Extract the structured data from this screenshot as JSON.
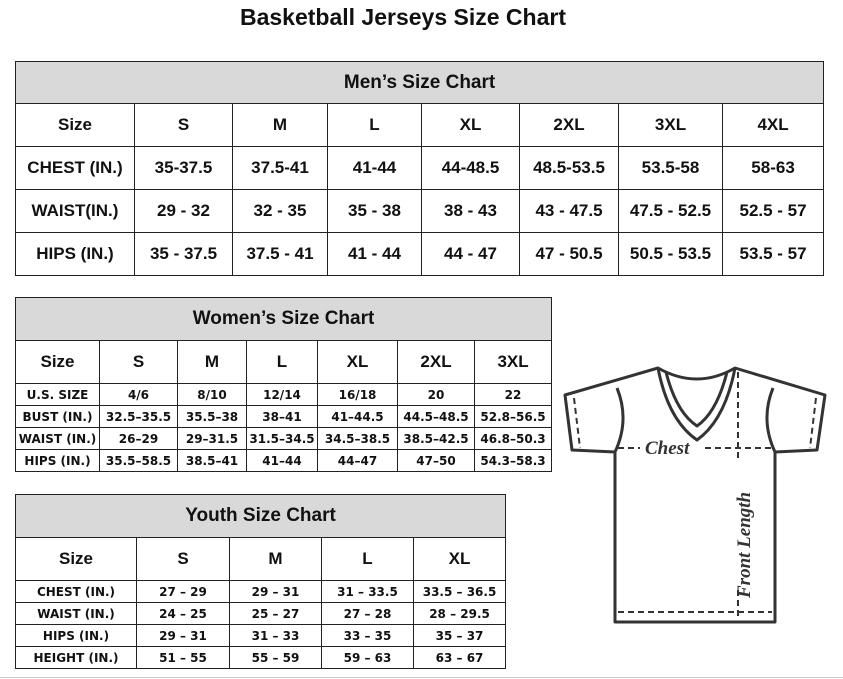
{
  "title": "Basketball Jerseys Size Chart",
  "men": {
    "caption": "Men’s Size Chart",
    "header": [
      "Size",
      "S",
      "M",
      "L",
      "XL",
      "2XL",
      "3XL",
      "4XL"
    ],
    "rows": [
      [
        "CHEST (IN.)",
        "35-37.5",
        "37.5-41",
        "41-44",
        "44-48.5",
        "48.5-53.5",
        "53.5-58",
        "58-63"
      ],
      [
        "WAIST(IN.)",
        "29 - 32",
        "32 - 35",
        "35 - 38",
        "38 - 43",
        "43 - 47.5",
        "47.5 - 52.5",
        "52.5 - 57"
      ],
      [
        "HIPS (IN.)",
        "35 - 37.5",
        "37.5 - 41",
        "41 - 44",
        "44 - 47",
        "47 - 50.5",
        "50.5 - 53.5",
        "53.5 - 57"
      ]
    ]
  },
  "women": {
    "caption": "Women’s Size Chart",
    "header": [
      "Size",
      "S",
      "M",
      "L",
      "XL",
      "2XL",
      "3XL"
    ],
    "rows": [
      [
        "U.S. SIZE",
        "4/6",
        "8/10",
        "12/14",
        "16/18",
        "20",
        "22"
      ],
      [
        "BUST (IN.)",
        "32.5–35.5",
        "35.5–38",
        "38–41",
        "41–44.5",
        "44.5–48.5",
        "52.8–56.5"
      ],
      [
        "WAIST (IN.)",
        "26–29",
        "29–31.5",
        "31.5–34.5",
        "34.5–38.5",
        "38.5–42.5",
        "46.8–50.3"
      ],
      [
        "HIPS (IN.)",
        "35.5–58.5",
        "38.5–41",
        "41–44",
        "44–47",
        "47–50",
        "54.3–58.3"
      ]
    ]
  },
  "youth": {
    "caption": "Youth Size Chart",
    "header": [
      "Size",
      "S",
      "M",
      "L",
      "XL"
    ],
    "rows": [
      [
        "CHEST (IN.)",
        "27 – 29",
        "29 – 31",
        "31 – 33.5",
        "33.5 – 36.5"
      ],
      [
        "WAIST (IN.)",
        "24 – 25",
        "25 – 27",
        "27 – 28",
        "28 – 29.5"
      ],
      [
        "HIPS (IN.)",
        "29 – 31",
        "31 – 33",
        "33 – 35",
        "35 – 37"
      ],
      [
        "HEIGHT (IN.)",
        "51 – 55",
        "55 – 59",
        "59 – 63",
        "63 – 67"
      ]
    ]
  },
  "diagram": {
    "chest_label": "Chest",
    "length_label": "Front Length"
  }
}
